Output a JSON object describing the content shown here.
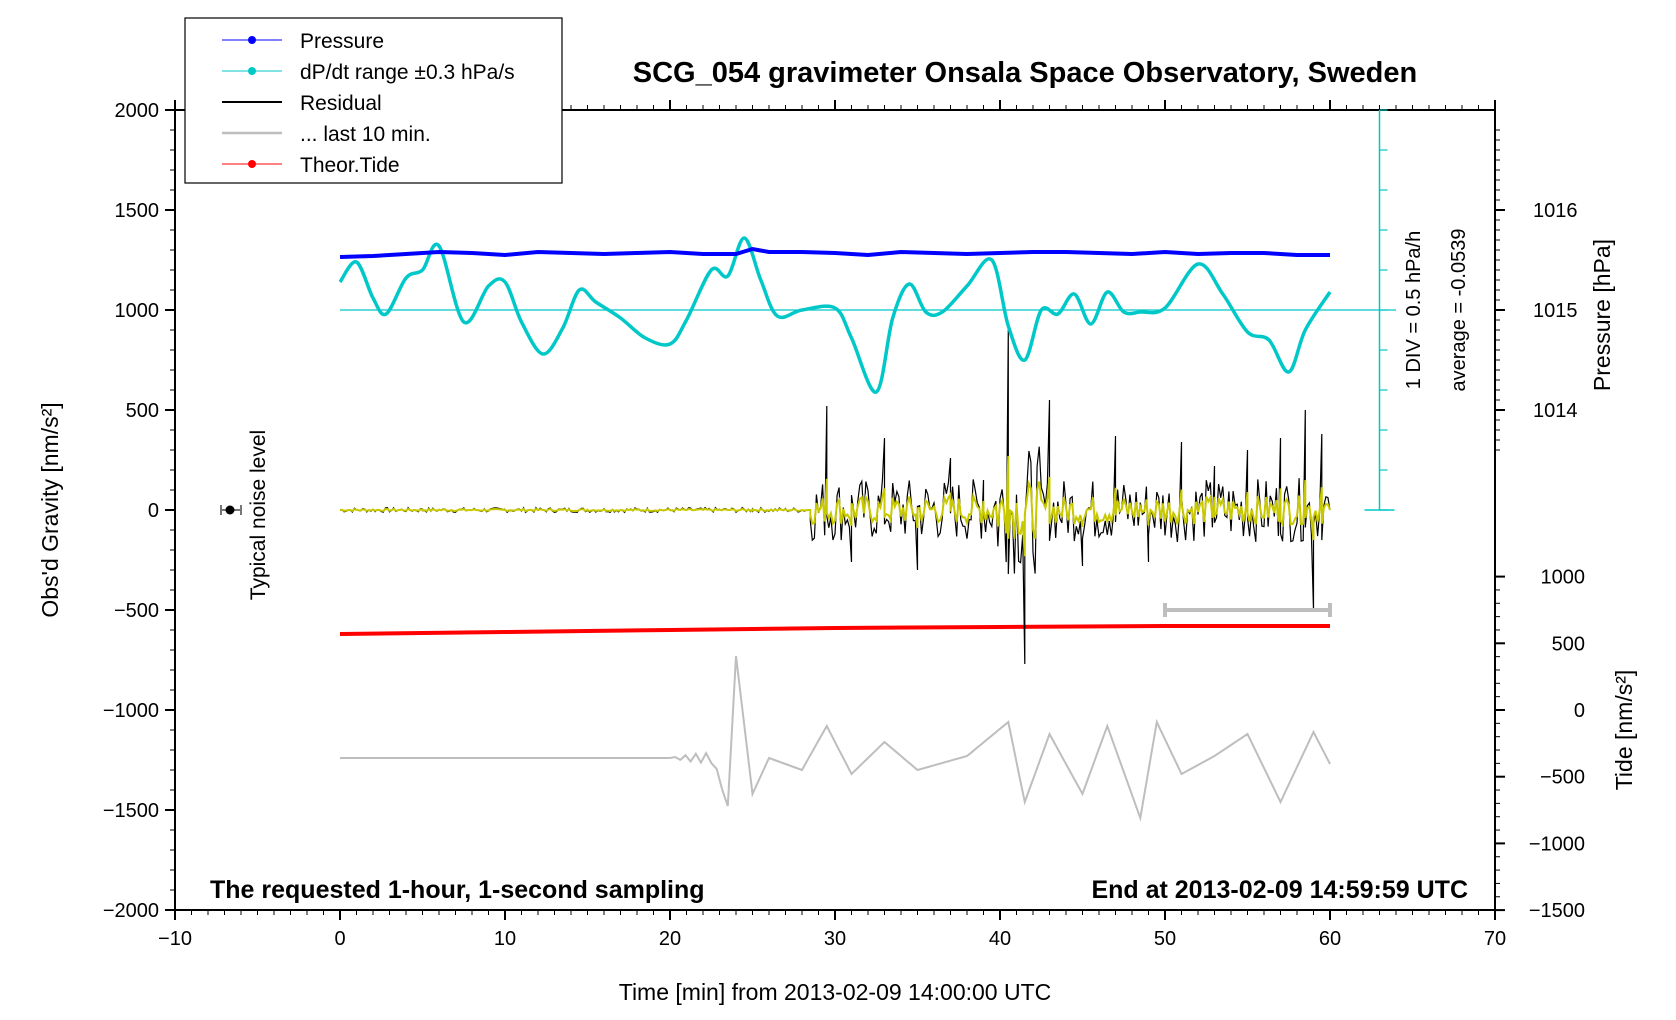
{
  "title": "SCG_054 gravimeter Onsala Space Observatory, Sweden",
  "legend": [
    {
      "label": "Pressure",
      "color": "#0000ff",
      "marker": true
    },
    {
      "label": "dP/dt range ±0.3 hPa/s",
      "color": "#00c8c8",
      "marker": true
    },
    {
      "label": "Residual",
      "color": "#000000",
      "marker": false
    },
    {
      "label": "... last 10 min.",
      "color": "#bebebe",
      "marker": false
    },
    {
      "label": "Theor.Tide",
      "color": "#ff0000",
      "marker": true
    }
  ],
  "annotations": {
    "bottom_left": "The requested 1-hour, 1-second sampling",
    "bottom_right": "End at 2013-02-09 14:59:59 UTC",
    "noise_label": "Typical noise level",
    "div_label": "1 DIV = 0.5 hPa/h",
    "average_label": "average = -0.0539"
  },
  "chart_data": {
    "type": "line",
    "title": "SCG_054 gravimeter Onsala Space Observatory, Sweden",
    "xlabel": "Time [min] from 2013-02-09 14:00:00 UTC",
    "ylabel": "Obs'd Gravity [nm/s²]",
    "xlim": [
      -10,
      70
    ],
    "ylim": [
      -2000,
      2000
    ],
    "x_ticks": [
      -10,
      0,
      10,
      20,
      30,
      40,
      50,
      60,
      70
    ],
    "x_tick_labels": [
      "−10",
      "0",
      "10",
      "20",
      "30",
      "40",
      "50",
      "60",
      "70"
    ],
    "y_ticks": [
      -2000,
      -1500,
      -1000,
      -500,
      0,
      500,
      1000,
      1500,
      2000
    ],
    "y_tick_labels": [
      "−2000",
      "−1500",
      "−1000",
      "−500",
      "0",
      "500",
      "1000",
      "1500",
      "2000"
    ],
    "pressure_axis": {
      "label": "Pressure [hPa]",
      "ticks": [
        1014,
        1015,
        1016
      ],
      "tick_labels": [
        "1014",
        "1015",
        "1016"
      ],
      "gravity_at_1015": 1000,
      "gravity_per_hPa": 500
    },
    "tide_axis": {
      "label": "Tide [nm/s²]",
      "ticks": [
        -1500,
        -1000,
        -500,
        0,
        500,
        1000
      ],
      "tick_labels": [
        "−1500",
        "−1000",
        "−500",
        "0",
        "500",
        "1000"
      ],
      "gravity_at_0": -1000,
      "gravity_per_unit": 0.667
    },
    "noise_point": {
      "x": -7,
      "y": 0
    },
    "last10_bar": {
      "x0": 50,
      "x1": 60,
      "y": -500
    },
    "series": [
      {
        "name": "Pressure",
        "color": "#0000ff",
        "unit": "hPa",
        "x": [
          0,
          2,
          4,
          6,
          8,
          10,
          12,
          14,
          16,
          18,
          20,
          22,
          24,
          25,
          26,
          28,
          30,
          32,
          34,
          36,
          38,
          40,
          42,
          44,
          46,
          48,
          50,
          52,
          54,
          56,
          58,
          60
        ],
        "values": [
          1015.53,
          1015.54,
          1015.56,
          1015.58,
          1015.57,
          1015.55,
          1015.58,
          1015.57,
          1015.56,
          1015.57,
          1015.58,
          1015.56,
          1015.56,
          1015.61,
          1015.58,
          1015.58,
          1015.57,
          1015.55,
          1015.58,
          1015.57,
          1015.56,
          1015.57,
          1015.58,
          1015.58,
          1015.57,
          1015.56,
          1015.58,
          1015.56,
          1015.57,
          1015.57,
          1015.55,
          1015.55
        ]
      },
      {
        "name": "dP/dt range ±0.3 hPa/s",
        "color": "#00c8c8",
        "unit": "nm/s² (plot scale)",
        "x": [
          0,
          1,
          2,
          2.8,
          4,
          5,
          6,
          7.5,
          9,
          10,
          11,
          12.3,
          13.5,
          14.5,
          15.5,
          17,
          18.5,
          20,
          21,
          22.5,
          23.5,
          24.5,
          25.5,
          26.5,
          28,
          30,
          31,
          32.5,
          33.5,
          34.5,
          35.5,
          36.5,
          38,
          39.5,
          40.5,
          41.5,
          42.5,
          43.5,
          44.5,
          45.5,
          46.5,
          47.5,
          48.5,
          50,
          52,
          53.5,
          55,
          56.3,
          57.5,
          58.5,
          60
        ],
        "values": [
          1140,
          1240,
          1060,
          980,
          1160,
          1200,
          1320,
          940,
          1120,
          1140,
          940,
          780,
          910,
          1100,
          1040,
          960,
          860,
          830,
          950,
          1200,
          1170,
          1360,
          1150,
          970,
          1000,
          1010,
          860,
          590,
          960,
          1130,
          990,
          990,
          1120,
          1250,
          920,
          750,
          1000,
          980,
          1080,
          930,
          1090,
          990,
          990,
          1010,
          1230,
          1080,
          890,
          850,
          690,
          900,
          1090
        ]
      },
      {
        "name": "Residual",
        "color": "#000000",
        "unit": "nm/s²",
        "x": [
          0,
          5,
          10,
          15,
          20,
          25,
          28.5,
          29.5,
          31,
          33,
          35,
          37,
          39,
          40.5,
          41.5,
          43,
          45,
          47,
          49,
          51,
          53,
          55,
          57,
          58.5,
          59,
          59.5,
          60
        ],
        "values": [
          0,
          5,
          0,
          -5,
          0,
          5,
          0,
          520,
          -260,
          360,
          -300,
          260,
          150,
          900,
          -770,
          550,
          -280,
          370,
          -260,
          340,
          220,
          300,
          360,
          500,
          -500,
          380,
          0
        ]
      },
      {
        "name": "... last 10 min.",
        "color": "#bebebe",
        "unit": "nm/s² (plot scale)",
        "x": [
          0,
          5,
          10,
          15,
          20,
          22.5,
          23.5,
          24,
          25,
          26,
          28,
          29.5,
          31,
          33,
          35,
          38,
          40.5,
          41.5,
          43,
          45,
          46.5,
          48.5,
          49.5,
          51,
          53,
          55,
          57,
          59,
          60
        ],
        "values": [
          -1240,
          -1240,
          -1240,
          -1240,
          -1240,
          -1240,
          -1480,
          -730,
          -1420,
          -1240,
          -1300,
          -1080,
          -1320,
          -1160,
          -1300,
          -1230,
          -1060,
          -1460,
          -1120,
          -1420,
          -1080,
          -1540,
          -1060,
          -1320,
          -1230,
          -1120,
          -1460,
          -1110,
          -1270
        ]
      },
      {
        "name": "Theor.Tide",
        "color": "#ff0000",
        "unit": "nm/s²",
        "x": [
          0,
          10,
          20,
          30,
          40,
          50,
          60
        ],
        "values": [
          -620,
          -610,
          -600,
          -590,
          -585,
          -580,
          -580
        ]
      }
    ]
  }
}
